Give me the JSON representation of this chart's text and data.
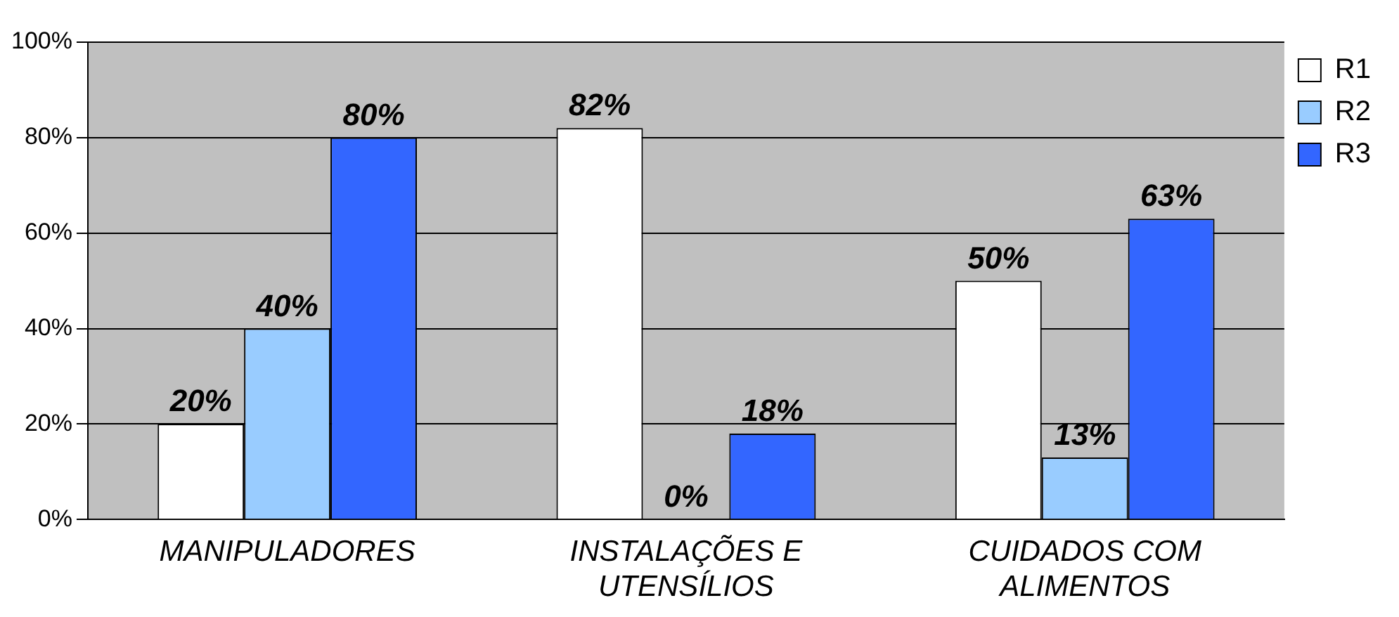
{
  "chart_data": {
    "type": "bar",
    "categories": [
      "MANIPULADORES",
      "INSTALAÇÕES E UTENSÍLIOS",
      "CUIDADOS COM ALIMENTOS"
    ],
    "series": [
      {
        "name": "R1",
        "color": "#ffffff",
        "values": [
          20,
          82,
          50
        ],
        "value_labels": [
          "20%",
          "82%",
          "50%"
        ]
      },
      {
        "name": "R2",
        "color": "#99ccff",
        "values": [
          40,
          0,
          13
        ],
        "value_labels": [
          "40%",
          "0%",
          "13%"
        ]
      },
      {
        "name": "R3",
        "color": "#3366ff",
        "values": [
          80,
          18,
          63
        ],
        "value_labels": [
          "80%",
          "18%",
          "63%"
        ]
      }
    ],
    "ylim": [
      0,
      100
    ],
    "yticks": [
      {
        "value": 0,
        "label": "0%"
      },
      {
        "value": 20,
        "label": "20%"
      },
      {
        "value": 40,
        "label": "40%"
      },
      {
        "value": 60,
        "label": "60%"
      },
      {
        "value": 80,
        "label": "80%"
      },
      {
        "value": 100,
        "label": "100%"
      }
    ],
    "grid": "y",
    "legend": "top right"
  }
}
